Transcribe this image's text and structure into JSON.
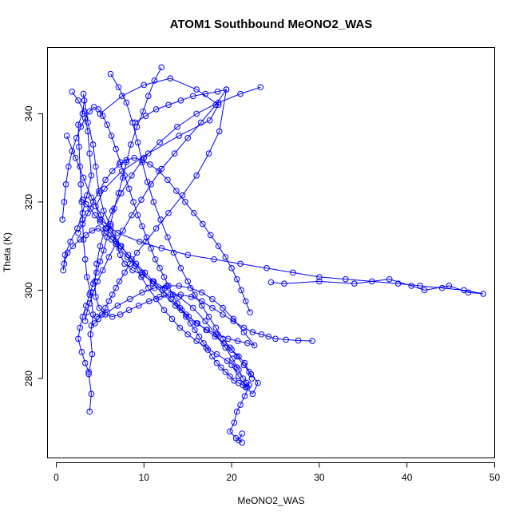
{
  "chart_data": {
    "type": "scatter",
    "title": "ATOM1 Southbound MeONO2_WAS",
    "xlabel": "MeONO2_WAS",
    "ylabel": "Theta (K)",
    "xlim": [
      -1,
      50
    ],
    "ylim": [
      262,
      355
    ],
    "xticks": [
      0,
      10,
      20,
      30,
      40,
      50
    ],
    "yticks": [
      280,
      300,
      320,
      340
    ],
    "grid": false,
    "legend": "none",
    "connect_points": true,
    "marker": "open-circle",
    "color": "#0000ff",
    "series": [
      {
        "x": [
          3.8,
          4.0,
          3.7,
          4.1,
          3.9,
          4.2,
          3.9,
          3.5,
          3.3,
          3.1,
          3.0,
          2.9,
          2.8,
          2.7,
          2.6,
          2.5,
          3.0,
          3.2,
          3.1,
          3.6,
          4.2,
          4.5,
          4.9,
          5.4,
          6.2,
          6.8,
          7.3,
          7.8,
          8.7,
          9.8,
          11.0,
          12.4,
          14.0,
          15.6,
          17.0,
          18.2,
          19.3,
          20.1,
          20.8,
          21.3,
          21.7,
          22.0,
          21.5,
          21.0,
          20.6,
          20.3,
          19.8,
          20.5,
          21.2,
          20.8,
          21.2
        ],
        "y": [
          272.5,
          276.5,
          281.0,
          285.5,
          290.0,
          294.5,
          299.5,
          303.0,
          307.0,
          311.5,
          316.0,
          320.0,
          324.0,
          328.0,
          332.5,
          337.5,
          340.0,
          343.0,
          344.5,
          338.0,
          333.0,
          328.0,
          322.0,
          318.0,
          314.5,
          311.0,
          308.0,
          306.0,
          304.5,
          303.5,
          302.0,
          300.5,
          298.5,
          296.0,
          293.0,
          290.0,
          287.0,
          284.5,
          282.0,
          280.0,
          279.0,
          278.5,
          276.0,
          274.0,
          272.5,
          270.0,
          268.0,
          266.5,
          265.5,
          266.0,
          267.5
        ]
      },
      {
        "x": [
          1.8,
          2.5,
          3.2,
          3.6,
          3.8,
          4.0,
          3.5,
          3.0,
          2.4,
          1.6,
          1.0,
          0.8,
          0.9,
          1.3,
          1.9,
          2.7,
          3.4,
          4.1,
          4.8,
          5.5,
          6.3,
          7.2,
          8.1,
          9.0,
          9.7,
          10.5,
          11.4,
          12.3,
          13.2,
          14.1,
          15.0,
          16.0,
          17.1,
          18.3,
          19.5,
          20.6
        ],
        "y": [
          345.0,
          343.0,
          340.5,
          336.0,
          331.0,
          326.0,
          321.5,
          317.5,
          314.0,
          311.0,
          308.0,
          304.5,
          306.0,
          308.5,
          310.0,
          311.5,
          312.5,
          313.5,
          314.0,
          313.0,
          311.5,
          309.5,
          307.5,
          305.5,
          303.0,
          300.5,
          298.0,
          295.5,
          293.5,
          291.5,
          290.0,
          288.5,
          287.0,
          285.5,
          284.0,
          282.5
        ]
      },
      {
        "x": [
          5.0,
          7.5,
          10.0,
          13.0,
          16.0,
          18.5,
          17.5,
          14.0,
          10.5,
          7.5,
          5.5,
          4.5,
          5.0,
          7.0,
          9.5,
          12.0,
          15.0,
          18.0,
          21.0,
          24.0,
          27.0,
          30.0,
          33.0,
          36.0,
          39.0,
          41.5,
          44.0,
          46.5,
          48.7,
          47.0,
          44.8,
          42.0,
          40.5,
          38.0,
          34.0,
          30.0,
          26.0,
          24.5
        ],
        "y": [
          340.0,
          344.0,
          346.5,
          348.0,
          345.5,
          342.0,
          338.5,
          335.0,
          331.0,
          327.0,
          323.0,
          319.0,
          316.0,
          313.0,
          311.0,
          309.5,
          308.0,
          307.0,
          306.0,
          305.0,
          304.0,
          303.0,
          302.5,
          302.0,
          301.5,
          301.0,
          300.5,
          300.0,
          299.2,
          299.5,
          301.0,
          300.0,
          301.0,
          302.5,
          301.5,
          302.0,
          301.5,
          301.8
        ]
      },
      {
        "x": [
          1.2,
          2.2,
          3.1,
          4.0,
          5.1,
          6.2,
          7.4,
          8.6,
          9.8,
          11.0,
          12.3,
          13.6,
          14.8,
          16.0,
          17.2,
          18.4,
          19.6,
          20.7,
          21.8,
          22.6,
          21.4,
          20.2,
          19.0,
          17.8,
          16.6,
          15.3,
          14.0,
          12.6,
          11.2,
          9.8,
          8.4,
          7.0,
          5.8,
          4.6
        ],
        "y": [
          335.0,
          330.0,
          325.5,
          321.0,
          317.0,
          313.5,
          310.0,
          307.0,
          304.0,
          301.5,
          299.0,
          296.5,
          294.5,
          292.5,
          291.0,
          290.0,
          289.0,
          288.5,
          288.0,
          287.5,
          290.5,
          293.5,
          296.0,
          298.0,
          299.5,
          300.5,
          301.0,
          301.0,
          300.5,
          299.5,
          298.0,
          296.5,
          295.0,
          294.0
        ]
      },
      {
        "x": [
          6.2,
          7.1,
          8.0,
          8.7,
          9.3,
          9.8,
          10.4,
          11.1,
          11.9,
          12.7,
          13.4,
          14.2,
          15.0,
          15.8,
          16.6,
          17.4,
          18.2,
          19.0,
          19.8,
          20.6,
          21.4,
          22.2,
          23.0,
          22.4,
          21.6,
          20.8,
          20.0
        ],
        "y": [
          349.0,
          346.0,
          342.5,
          338.0,
          333.5,
          329.0,
          324.5,
          320.0,
          316.0,
          312.0,
          308.5,
          305.0,
          302.0,
          299.0,
          296.5,
          294.0,
          291.5,
          289.0,
          287.0,
          285.0,
          283.0,
          281.0,
          279.0,
          276.5,
          278.0,
          280.5,
          283.0
        ]
      },
      {
        "x": [
          12.0,
          11.2,
          10.5,
          9.9,
          9.2,
          8.5,
          8.0,
          7.6,
          7.1,
          6.6,
          6.2,
          5.8,
          5.4,
          5.0,
          4.6,
          4.2,
          3.8,
          3.4,
          3.0,
          2.7,
          2.5,
          2.9,
          3.3,
          3.7
        ],
        "y": [
          350.5,
          347.5,
          344.0,
          340.5,
          337.0,
          333.0,
          329.0,
          325.5,
          322.0,
          318.5,
          315.0,
          312.0,
          309.0,
          306.5,
          304.0,
          301.5,
          299.0,
          296.5,
          294.0,
          291.5,
          289.0,
          286.0,
          283.5,
          281.5
        ]
      },
      {
        "x": [
          19.4,
          18.2,
          16.5,
          15.0,
          13.5,
          12.0,
          10.8,
          9.7,
          8.6,
          7.6,
          6.8,
          6.0,
          5.3,
          4.7,
          4.2,
          3.8,
          3.5,
          3.3
        ],
        "y": [
          345.5,
          342.0,
          338.0,
          334.5,
          331.0,
          327.5,
          324.0,
          320.5,
          317.0,
          313.5,
          310.5,
          307.5,
          304.5,
          302.0,
          299.5,
          297.0,
          295.0,
          293.0
        ]
      },
      {
        "x": [
          23.3,
          21.0,
          18.5,
          16.0,
          13.8,
          11.8,
          10.0,
          8.6,
          7.4,
          6.4,
          5.6,
          5.0,
          4.6,
          4.4,
          4.5,
          4.9,
          5.6,
          6.4,
          7.3,
          8.3,
          9.4,
          10.6,
          11.8,
          13.0,
          14.2,
          15.4,
          16.6,
          17.8,
          19.0,
          20.2,
          21.4,
          22.4,
          23.4,
          24.2,
          25.0,
          26.2,
          27.6,
          29.2
        ],
        "y": [
          346.0,
          344.5,
          342.5,
          340.0,
          337.0,
          333.5,
          330.0,
          326.0,
          322.0,
          318.0,
          314.0,
          310.0,
          306.0,
          302.0,
          298.5,
          296.0,
          294.5,
          294.0,
          294.5,
          295.5,
          296.5,
          297.5,
          298.5,
          299.0,
          299.0,
          298.5,
          297.5,
          296.0,
          294.5,
          293.0,
          291.5,
          290.5,
          290.0,
          289.5,
          289.0,
          288.8,
          288.6,
          288.5
        ]
      },
      {
        "x": [
          0.7,
          0.9,
          1.1,
          1.4,
          1.8,
          2.3,
          2.8,
          3.3,
          3.8,
          4.3,
          4.8,
          5.3,
          5.8,
          6.3,
          6.8,
          7.3,
          7.8,
          8.3,
          8.8,
          9.3,
          9.8,
          10.3,
          10.8,
          11.3,
          11.8,
          12.3,
          12.8,
          13.3,
          13.8,
          14.3,
          14.8,
          15.3,
          15.8,
          16.3,
          16.8,
          17.3,
          17.8,
          18.3,
          18.8,
          19.3,
          19.8,
          20.3,
          20.8,
          21.3,
          21.8
        ],
        "y": [
          316.0,
          320.0,
          324.0,
          328.0,
          331.5,
          334.5,
          337.0,
          339.0,
          340.5,
          341.5,
          341.0,
          339.5,
          337.5,
          335.0,
          332.0,
          329.0,
          326.0,
          323.0,
          320.0,
          317.0,
          314.5,
          312.0,
          309.5,
          307.0,
          305.0,
          303.0,
          301.0,
          299.0,
          297.0,
          295.5,
          294.0,
          292.5,
          291.0,
          289.5,
          288.0,
          286.5,
          285.0,
          283.5,
          282.5,
          281.5,
          280.5,
          279.5,
          279.0,
          278.5,
          278.0
        ]
      },
      {
        "x": [
          9.0,
          10.2,
          11.4,
          12.8,
          14.2,
          15.6,
          17.0,
          18.4,
          19.4,
          18.6,
          17.4,
          16.0,
          14.4,
          12.8,
          11.4,
          10.2,
          9.2,
          8.4,
          7.8,
          7.2,
          6.8,
          6.4,
          6.0,
          5.6,
          5.2,
          4.8,
          4.4,
          4.0
        ],
        "y": [
          338.0,
          339.5,
          341.0,
          342.0,
          343.0,
          344.0,
          344.5,
          345.0,
          345.5,
          336.0,
          331.0,
          326.0,
          321.5,
          317.5,
          314.0,
          311.0,
          308.5,
          306.0,
          304.0,
          302.0,
          300.5,
          299.0,
          297.5,
          296.0,
          294.5,
          293.5,
          292.5,
          292.0
        ]
      },
      {
        "x": [
          3.0,
          3.4,
          3.9,
          4.4,
          5.0,
          5.7,
          6.5,
          7.3,
          8.2,
          9.1,
          10.1,
          11.1,
          12.1,
          13.1,
          14.1,
          15.1,
          16.1,
          17.1,
          18.1,
          19.1,
          20.0,
          20.8,
          21.5,
          22.0,
          22.3
        ],
        "y": [
          320.5,
          319.5,
          318.5,
          317.0,
          315.5,
          314.0,
          312.0,
          310.0,
          308.0,
          306.0,
          304.0,
          302.0,
          300.0,
          298.0,
          296.0,
          294.0,
          292.5,
          291.0,
          289.5,
          288.0,
          286.5,
          285.0,
          283.5,
          281.5,
          280.0
        ]
      },
      {
        "x": [
          2.5,
          3.0,
          3.6,
          4.2,
          4.9,
          5.6,
          6.4,
          7.2,
          8.0,
          8.9,
          9.8,
          10.7,
          11.7,
          12.7,
          13.7,
          14.7,
          15.7,
          16.7,
          17.6,
          18.5,
          19.3,
          20.0,
          20.6,
          21.1,
          21.6,
          22.1
        ],
        "y": [
          313.0,
          315.0,
          317.5,
          320.0,
          322.5,
          325.0,
          327.0,
          328.5,
          329.5,
          330.0,
          329.5,
          328.5,
          327.0,
          325.0,
          322.5,
          320.0,
          317.5,
          315.0,
          312.5,
          310.0,
          307.5,
          305.0,
          302.5,
          300.0,
          297.5,
          295.0
        ]
      }
    ]
  }
}
